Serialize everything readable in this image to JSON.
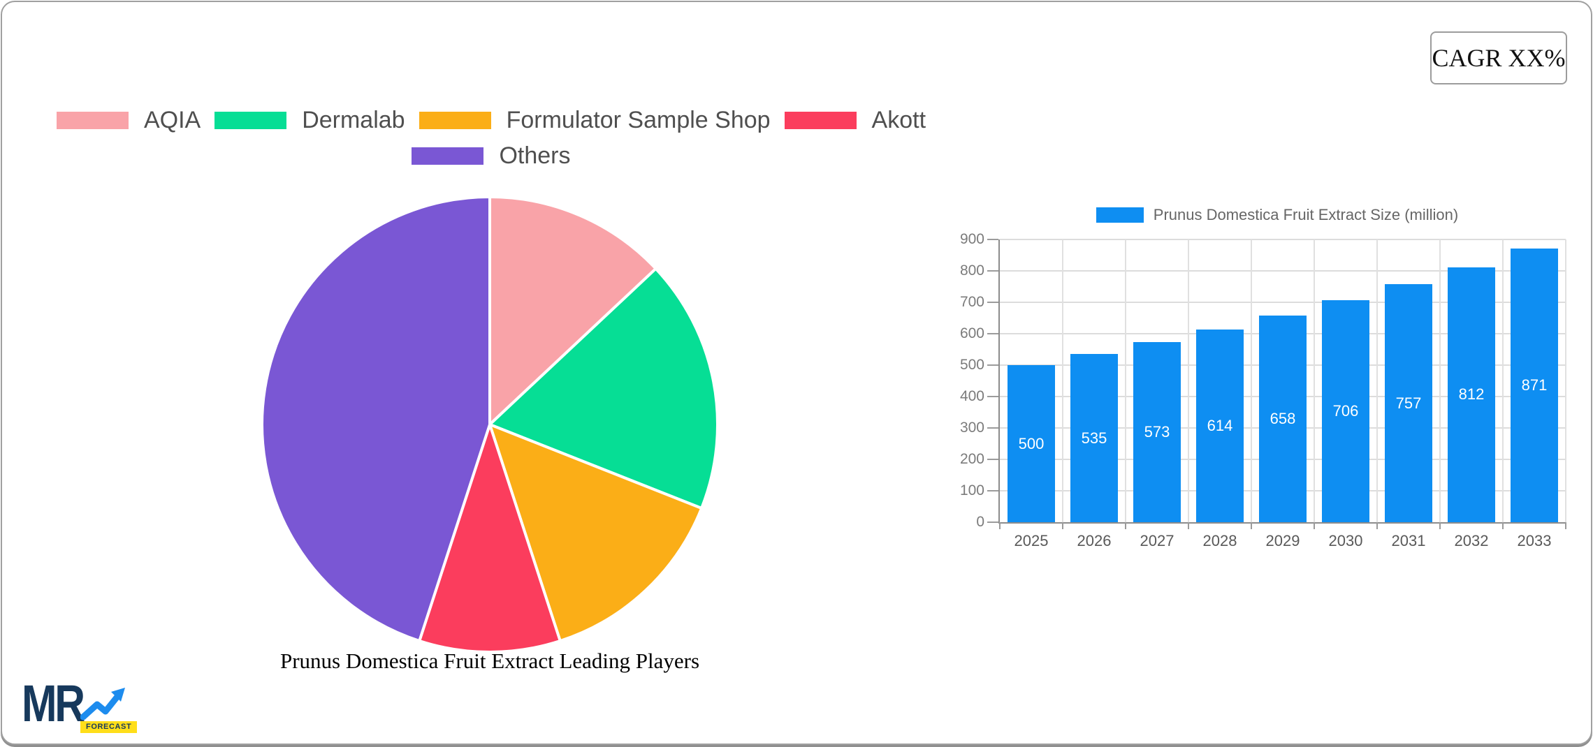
{
  "cagr_badge": {
    "label": "CAGR XX%"
  },
  "pie_legend": {
    "row_break": 4,
    "items": [
      {
        "label": "AQIA",
        "color": "#F9A3A8"
      },
      {
        "label": "Dermalab",
        "color": "#06DE95"
      },
      {
        "label": "Formulator Sample Shop",
        "color": "#FBAE17"
      },
      {
        "label": "Akott",
        "color": "#FB3D5D"
      },
      {
        "label": "Others",
        "color": "#7A57D4"
      }
    ]
  },
  "chart_data": [
    {
      "type": "pie",
      "title": "Prunus Domestica Fruit Extract Leading Players",
      "labels": [
        "AQIA",
        "Dermalab",
        "Formulator Sample Shop",
        "Akott",
        "Others"
      ],
      "values": [
        13,
        18,
        14,
        10,
        45
      ],
      "colors": [
        "#F9A3A8",
        "#06DE95",
        "#FBAE17",
        "#FB3D5D",
        "#7A57D4"
      ],
      "start_angle_deg": 0,
      "direction": "clockwise",
      "slice_border_color": "#FFFFFF",
      "legend_position": "top"
    },
    {
      "type": "bar",
      "legend": "Prunus Domestica Fruit Extract Size (million)",
      "categories": [
        "2025",
        "2026",
        "2027",
        "2028",
        "2029",
        "2030",
        "2031",
        "2032",
        "2033"
      ],
      "values": [
        500,
        535,
        573,
        614,
        658,
        706,
        757,
        812,
        871
      ],
      "bar_color": "#0E8EF2",
      "value_label_color": "#FFFFFF",
      "xlabel": "",
      "ylabel": "",
      "ylim": [
        0,
        900
      ],
      "ytick_step": 100,
      "grid": true,
      "legend_position": "top"
    }
  ],
  "logo": {
    "text": "MR",
    "badge": "FORECAST",
    "navy": "#17395C",
    "blue": "#1D8CEE",
    "yellow": "#FFDE1A"
  }
}
